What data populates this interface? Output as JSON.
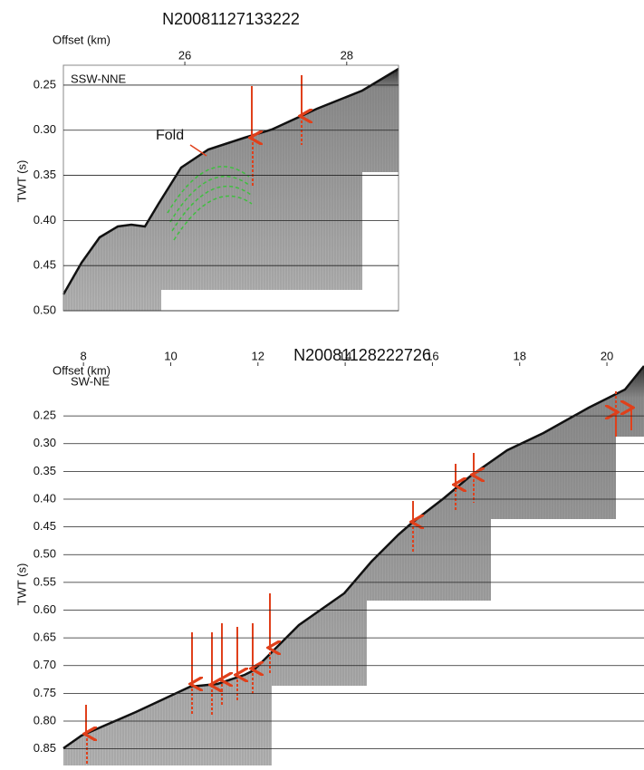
{
  "chart_data": [
    {
      "type": "seismic-profile",
      "title": "N20081127133222",
      "x_label": "Offset (km)",
      "y_label": "TWT (s)",
      "direction_label": "SSW-NNE",
      "annotation": "Fold",
      "xlim": [
        24.5,
        28.64
      ],
      "xticks": [
        26,
        28
      ],
      "ylim": [
        0.228,
        0.5
      ],
      "yticks": [
        0.25,
        {
          "value": 0.3,
          "label": "0.30"
        },
        0.35,
        {
          "value": 0.4,
          "label": "0.40"
        },
        0.45,
        {
          "value": 0.5,
          "label": "0.50"
        }
      ],
      "grid": true
    },
    {
      "type": "seismic-profile",
      "title": "N20081128222726",
      "x_label": "Offset (km)",
      "y_label": "TWT (s)",
      "direction_label": "SW-NE",
      "xlim": [
        7.54,
        20.85
      ],
      "xticks": [
        8,
        10,
        12,
        14,
        16,
        18,
        20
      ],
      "ylim": [
        0.16,
        0.88
      ],
      "yticks": [
        0.25,
        {
          "value": 0.3,
          "label": "0.30"
        },
        0.35,
        {
          "value": 0.4,
          "label": "0.40"
        },
        0.45,
        {
          "value": 0.5,
          "label": "0.50"
        },
        0.55,
        {
          "value": 0.6,
          "label": "0.60"
        },
        0.65,
        {
          "value": 0.7,
          "label": "0.70"
        },
        0.75,
        {
          "value": 0.8,
          "label": "0.80"
        },
        0.85
      ],
      "grid": true
    }
  ]
}
